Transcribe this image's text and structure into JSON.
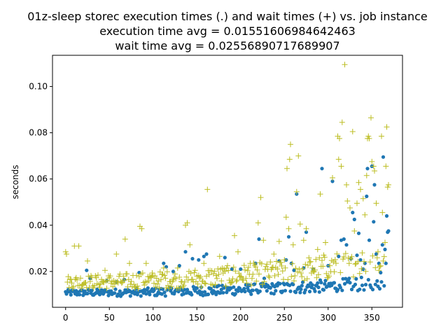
{
  "chart_data": {
    "type": "scatter",
    "title_lines": [
      "01z-sleep storec execution times (.) and wait times (+) vs. job instance",
      "execution time avg = 0.01551606984642463",
      "wait time avg = 0.02556890717689907"
    ],
    "xlabel": "",
    "ylabel": "seconds",
    "xlim": [
      -15,
      385
    ],
    "ylim": [
      0.0045,
      0.1135
    ],
    "xticks": [
      0,
      50,
      100,
      150,
      200,
      250,
      300,
      350
    ],
    "yticks": [
      0.02,
      0.04,
      0.06,
      0.08,
      0.1
    ],
    "ytick_labels": [
      "0.02",
      "0.04",
      "0.06",
      "0.08",
      "0.10"
    ],
    "grid": false,
    "legend": "none",
    "series": [
      {
        "marker": "dot",
        "color": "#1f77b4",
        "n": 370,
        "base": 0.0108,
        "rise": 0.0045,
        "noise": 0.0022,
        "outliers": [
          [
            24,
            0.0205
          ],
          [
            28,
            0.017
          ],
          [
            47,
            0.016
          ],
          [
            58,
            0.0155
          ],
          [
            67,
            0.0165
          ],
          [
            84,
            0.0195
          ],
          [
            112,
            0.0235
          ],
          [
            115,
            0.022
          ],
          [
            123,
            0.02
          ],
          [
            130,
            0.0225
          ],
          [
            137,
            0.0285
          ],
          [
            145,
            0.0255
          ],
          [
            152,
            0.025
          ],
          [
            158,
            0.0265
          ],
          [
            161,
            0.0275
          ],
          [
            182,
            0.026
          ],
          [
            190,
            0.021
          ],
          [
            200,
            0.021
          ],
          [
            217,
            0.0235
          ],
          [
            221,
            0.034
          ],
          [
            227,
            0.017
          ],
          [
            244,
            0.0245
          ],
          [
            252,
            0.025
          ],
          [
            255,
            0.035
          ],
          [
            258,
            0.0235
          ],
          [
            261,
            0.0205
          ],
          [
            264,
            0.0535
          ],
          [
            272,
            0.0215
          ],
          [
            275,
            0.037
          ],
          [
            283,
            0.021
          ],
          [
            293,
            0.0645
          ],
          [
            300,
            0.0225
          ],
          [
            305,
            0.059
          ],
          [
            312,
            0.0265
          ],
          [
            315,
            0.0335
          ],
          [
            318,
            0.034
          ],
          [
            321,
            0.0315
          ],
          [
            326,
            0.0255
          ],
          [
            328,
            0.0455
          ],
          [
            330,
            0.0425
          ],
          [
            333,
            0.027
          ],
          [
            335,
            0.0365
          ],
          [
            337,
            0.025
          ],
          [
            340,
            0.021
          ],
          [
            342,
            0.0235
          ],
          [
            344,
            0.0525
          ],
          [
            345,
            0.0645
          ],
          [
            347,
            0.0335
          ],
          [
            350,
            0.0655
          ],
          [
            352,
            0.0415
          ],
          [
            353,
            0.0575
          ],
          [
            355,
            0.0275
          ],
          [
            358,
            0.0235
          ],
          [
            360,
            0.0195
          ],
          [
            362,
            0.0315
          ],
          [
            363,
            0.0695
          ],
          [
            365,
            0.0295
          ],
          [
            366,
            0.0235
          ],
          [
            367,
            0.044
          ],
          [
            368,
            0.037
          ],
          [
            369,
            0.0375
          ]
        ]
      },
      {
        "marker": "plus",
        "color": "#bcbd22",
        "n": 370,
        "base": 0.0155,
        "rise": 0.01,
        "noise": 0.0045,
        "outliers": [
          [
            0,
            0.0285
          ],
          [
            1,
            0.0275
          ],
          [
            10,
            0.031
          ],
          [
            15,
            0.031
          ],
          [
            25,
            0.0245
          ],
          [
            45,
            0.0205
          ],
          [
            58,
            0.0275
          ],
          [
            68,
            0.034
          ],
          [
            73,
            0.0235
          ],
          [
            85,
            0.0395
          ],
          [
            87,
            0.0385
          ],
          [
            92,
            0.0235
          ],
          [
            112,
            0.0215
          ],
          [
            128,
            0.0215
          ],
          [
            137,
            0.04
          ],
          [
            139,
            0.041
          ],
          [
            142,
            0.0315
          ],
          [
            158,
            0.0235
          ],
          [
            162,
            0.0555
          ],
          [
            176,
            0.0265
          ],
          [
            193,
            0.0355
          ],
          [
            197,
            0.0285
          ],
          [
            211,
            0.0235
          ],
          [
            220,
            0.041
          ],
          [
            223,
            0.052
          ],
          [
            226,
            0.0335
          ],
          [
            238,
            0.0275
          ],
          [
            244,
            0.033
          ],
          [
            252,
            0.0435
          ],
          [
            253,
            0.0645
          ],
          [
            255,
            0.0385
          ],
          [
            256,
            0.0685
          ],
          [
            257,
            0.075
          ],
          [
            260,
            0.0315
          ],
          [
            264,
            0.0545
          ],
          [
            266,
            0.07
          ],
          [
            268,
            0.0405
          ],
          [
            272,
            0.0335
          ],
          [
            275,
            0.0385
          ],
          [
            282,
            0.0215
          ],
          [
            288,
            0.0295
          ],
          [
            291,
            0.0535
          ],
          [
            297,
            0.0325
          ],
          [
            302,
            0.0225
          ],
          [
            305,
            0.0605
          ],
          [
            311,
            0.0785
          ],
          [
            312,
            0.0685
          ],
          [
            313,
            0.0775
          ],
          [
            315,
            0.0655
          ],
          [
            316,
            0.0845
          ],
          [
            319,
            0.1095
          ],
          [
            321,
            0.0575
          ],
          [
            322,
            0.0505
          ],
          [
            325,
            0.0475
          ],
          [
            328,
            0.0805
          ],
          [
            330,
            0.0375
          ],
          [
            333,
            0.0495
          ],
          [
            335,
            0.0585
          ],
          [
            337,
            0.0555
          ],
          [
            340,
            0.0515
          ],
          [
            342,
            0.0445
          ],
          [
            344,
            0.0615
          ],
          [
            345,
            0.0775
          ],
          [
            346,
            0.0785
          ],
          [
            347,
            0.0775
          ],
          [
            349,
            0.0865
          ],
          [
            350,
            0.0675
          ],
          [
            352,
            0.0655
          ],
          [
            353,
            0.0635
          ],
          [
            355,
            0.0495
          ],
          [
            357,
            0.0285
          ],
          [
            358,
            0.0205
          ],
          [
            361,
            0.0785
          ],
          [
            362,
            0.0455
          ],
          [
            363,
            0.0245
          ],
          [
            365,
            0.0325
          ],
          [
            366,
            0.0655
          ],
          [
            367,
            0.0825
          ],
          [
            368,
            0.0565
          ],
          [
            369,
            0.0575
          ]
        ]
      }
    ]
  }
}
